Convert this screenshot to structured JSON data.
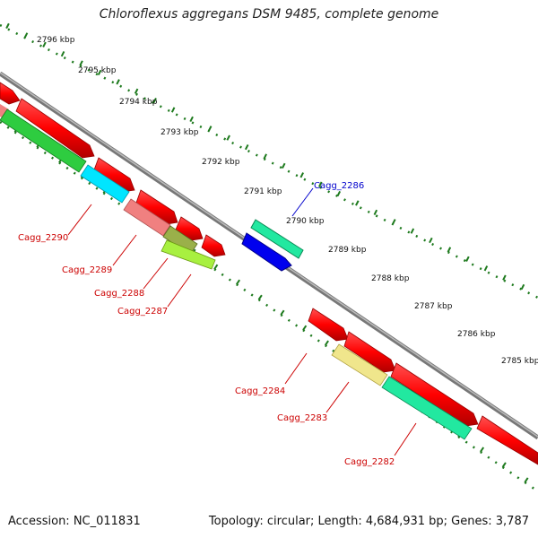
{
  "title": "Chloroflexus aggregans DSM 9485, complete genome",
  "footer": {
    "accession": "Accession: NC_011831",
    "summary": "Topology: circular; Length: 4,684,931 bp; Genes: 3,787"
  },
  "colors": {
    "backbone": "#888888",
    "tick": "#1e7a1e",
    "gene_red": "#ff0000",
    "label_red": "#cc0000",
    "label_blue": "#0000cc"
  },
  "scale_labels": [
    "2796 kbp",
    "2795 kbp",
    "2794 kbp",
    "2793 kbp",
    "2792 kbp",
    "2791 kbp",
    "2790 kbp",
    "2789 kbp",
    "2788 kbp",
    "2787 kbp",
    "2786 kbp",
    "2785 kbp"
  ],
  "gene_labels": [
    {
      "name": "Cagg_2286",
      "color": "blue"
    },
    {
      "name": "Cagg_2290",
      "color": "red"
    },
    {
      "name": "Cagg_2289",
      "color": "red"
    },
    {
      "name": "Cagg_2288",
      "color": "red"
    },
    {
      "name": "Cagg_2287",
      "color": "red"
    },
    {
      "name": "Cagg_2284",
      "color": "red"
    },
    {
      "name": "Cagg_2283",
      "color": "red"
    },
    {
      "name": "Cagg_2282",
      "color": "red"
    }
  ]
}
